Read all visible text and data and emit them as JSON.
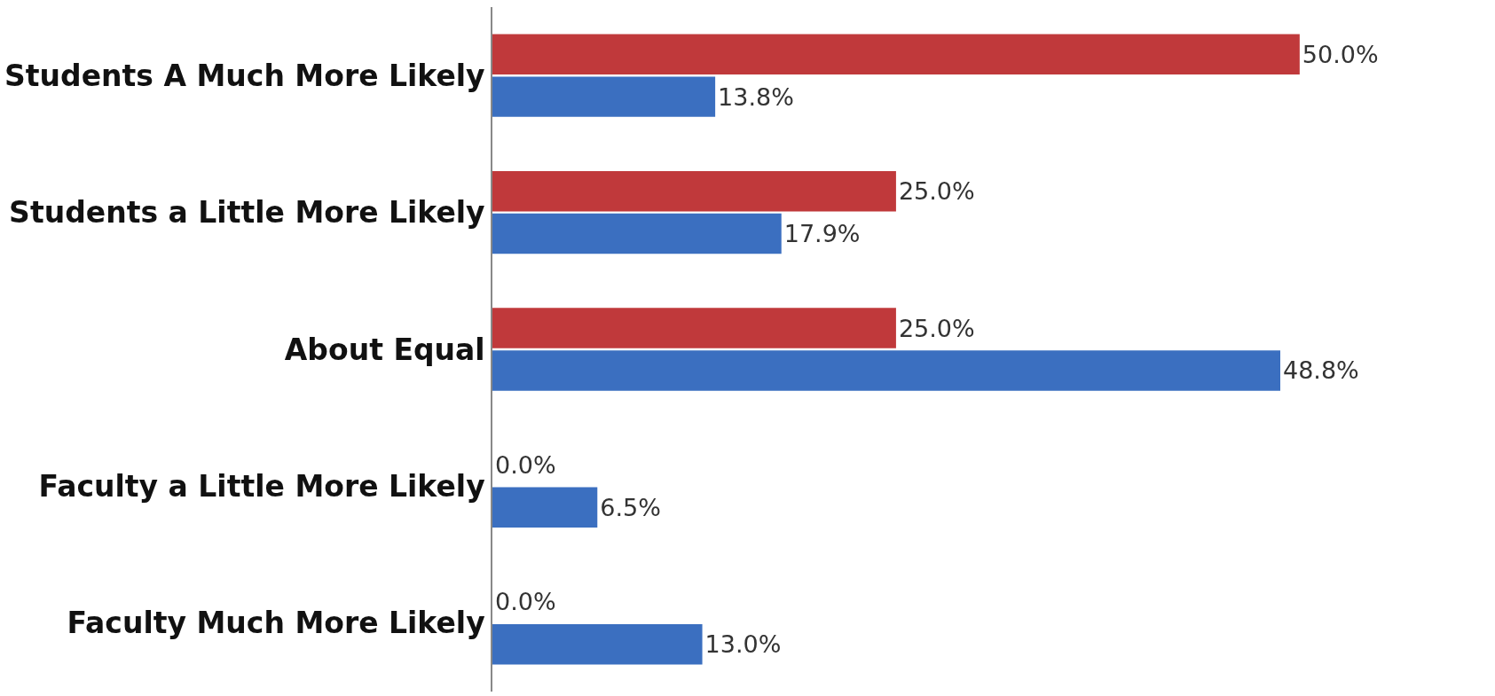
{
  "chart_data": {
    "type": "bar",
    "orientation": "horizontal",
    "categories": [
      "Students A Much More Likely",
      "Students a Little More Likely",
      "About Equal",
      "Faculty a Little More Likely",
      "Faculty Much More Likely"
    ],
    "series": [
      {
        "color": "#c0393b",
        "values": [
          50.0,
          25.0,
          25.0,
          0.0,
          0.0
        ],
        "value_labels": [
          "50.0%",
          "25.0%",
          "25.0%",
          "0.0%",
          "0.0%"
        ]
      },
      {
        "color": "#3b6fc0",
        "values": [
          13.8,
          17.9,
          48.8,
          6.5,
          13.0
        ],
        "value_labels": [
          "13.8%",
          "17.9%",
          "48.8%",
          "6.5%",
          "13.0%"
        ]
      }
    ]
  }
}
